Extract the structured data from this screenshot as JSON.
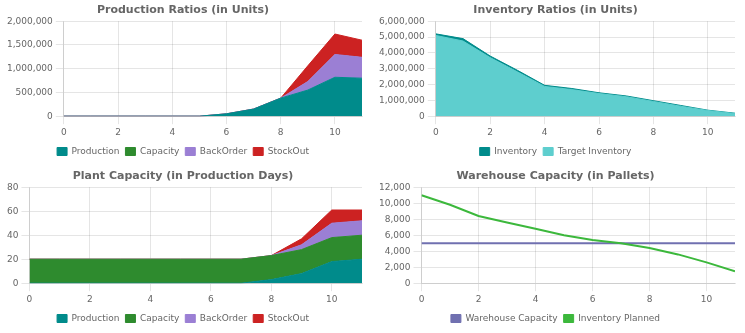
{
  "chart_data": [
    {
      "type": "area",
      "title": "Production Ratios (in Units)",
      "stacked": true,
      "grid": true,
      "legend": "bottom",
      "x": [
        0,
        1,
        2,
        3,
        4,
        5,
        6,
        7,
        8,
        9,
        10,
        11
      ],
      "xlim": [
        0,
        11
      ],
      "xticks": [
        0,
        2,
        4,
        6,
        8,
        10
      ],
      "ylim": [
        0,
        2000000
      ],
      "yticks": [
        0,
        {
          "value": 500000,
          "label": "500,000"
        },
        {
          "value": 1000000,
          "label": "1,000,000"
        },
        {
          "value": 1500000,
          "label": "1,500,000"
        },
        {
          "value": 2000000,
          "label": "2,000,000"
        }
      ],
      "series": [
        {
          "name": "Production",
          "color": "#008B8B",
          "values": [
            0,
            0,
            0,
            0,
            0,
            0,
            50000,
            150000,
            380000,
            550000,
            820000,
            800000
          ]
        },
        {
          "name": "Capacity",
          "color": "#2E8B2E",
          "values": [
            null,
            null,
            null,
            null,
            null,
            null,
            null,
            null,
            null,
            null,
            null,
            null
          ]
        },
        {
          "name": "BackOrder",
          "color": "#9B7FD4",
          "values": [
            0,
            0,
            0,
            0,
            0,
            0,
            0,
            0,
            0,
            180000,
            480000,
            440000
          ]
        },
        {
          "name": "StockOut",
          "color": "#CC2222",
          "values": [
            0,
            0,
            0,
            0,
            0,
            0,
            0,
            0,
            0,
            330000,
            430000,
            360000
          ]
        }
      ]
    },
    {
      "type": "area",
      "title": "Inventory Ratios (in Units)",
      "stacked": false,
      "grid": true,
      "legend": "bottom",
      "x": [
        0,
        1,
        2,
        3,
        4,
        5,
        6,
        7,
        8,
        9,
        10,
        11
      ],
      "xlim": [
        0,
        11
      ],
      "xticks": [
        0,
        2,
        4,
        6,
        8,
        10
      ],
      "ylim": [
        0,
        6000000
      ],
      "yticks": [
        0,
        {
          "value": 1000000,
          "label": "1,000,000"
        },
        {
          "value": 2000000,
          "label": "2,000,000"
        },
        {
          "value": 3000000,
          "label": "3,000,000"
        },
        {
          "value": 4000000,
          "label": "4,000,000"
        },
        {
          "value": 5000000,
          "label": "5,000,000"
        },
        {
          "value": 6000000,
          "label": "6,000,000"
        }
      ],
      "series": [
        {
          "name": "Inventory",
          "color": "#008B8B",
          "values": [
            5200000,
            4900000,
            3800000,
            2900000,
            1950000,
            1750000,
            1480000,
            1280000,
            980000,
            680000,
            380000,
            190000
          ]
        },
        {
          "name": "Target Inventory",
          "color": "#5ECECE",
          "values": [
            5100000,
            4750000,
            3700000,
            2800000,
            1880000,
            1680000,
            1430000,
            1230000,
            930000,
            630000,
            360000,
            170000
          ]
        }
      ]
    },
    {
      "type": "area",
      "title": "Plant Capacity (in Production Days)",
      "stacked": true,
      "grid": true,
      "legend": "bottom",
      "x": [
        0,
        1,
        2,
        3,
        4,
        5,
        6,
        7,
        8,
        9,
        10,
        11
      ],
      "xlim": [
        0,
        11
      ],
      "xticks": [
        0,
        2,
        4,
        6,
        8,
        10
      ],
      "ylim": [
        0,
        80
      ],
      "yticks": [
        0,
        20,
        40,
        60,
        80
      ],
      "series": [
        {
          "name": "Production",
          "color": "#008B8B",
          "values": [
            0,
            0,
            0,
            0,
            0,
            0,
            0,
            0,
            3,
            8,
            18,
            20
          ]
        },
        {
          "name": "Capacity",
          "color": "#2E8B2E",
          "values": [
            20,
            20,
            20,
            20,
            20,
            20,
            20,
            20,
            20,
            20,
            20,
            20
          ]
        },
        {
          "name": "BackOrder",
          "color": "#9B7FD4",
          "values": [
            0,
            0,
            0,
            0,
            0,
            0,
            0,
            0,
            0,
            4,
            12,
            12
          ]
        },
        {
          "name": "StockOut",
          "color": "#CC2222",
          "values": [
            0,
            0,
            0,
            0,
            0,
            0,
            0,
            0,
            0,
            5,
            11,
            9
          ]
        }
      ]
    },
    {
      "type": "line",
      "title": "Warehouse Capacity (in Pallets)",
      "stacked": false,
      "grid": true,
      "legend": "bottom",
      "x": [
        0,
        1,
        2,
        3,
        4,
        5,
        6,
        7,
        8,
        9,
        10,
        11
      ],
      "xlim": [
        0,
        11
      ],
      "xticks": [
        0,
        2,
        4,
        6,
        8,
        10
      ],
      "ylim": [
        0,
        12000
      ],
      "yticks": [
        0,
        {
          "value": 2000,
          "label": "2,000"
        },
        {
          "value": 4000,
          "label": "4,000"
        },
        {
          "value": 6000,
          "label": "6,000"
        },
        {
          "value": 8000,
          "label": "8,000"
        },
        {
          "value": 10000,
          "label": "10,000"
        },
        {
          "value": 12000,
          "label": "12,000"
        }
      ],
      "series": [
        {
          "name": "Warehouse Capacity",
          "color": "#7070B0",
          "values": [
            5000,
            5000,
            5000,
            5000,
            5000,
            5000,
            5000,
            5000,
            5000,
            5000,
            5000,
            5000
          ]
        },
        {
          "name": "Inventory Planned",
          "color": "#3CB83C",
          "values": [
            11000,
            9800,
            8400,
            7600,
            6800,
            6000,
            5400,
            5000,
            4400,
            3600,
            2600,
            1500
          ]
        }
      ]
    }
  ]
}
